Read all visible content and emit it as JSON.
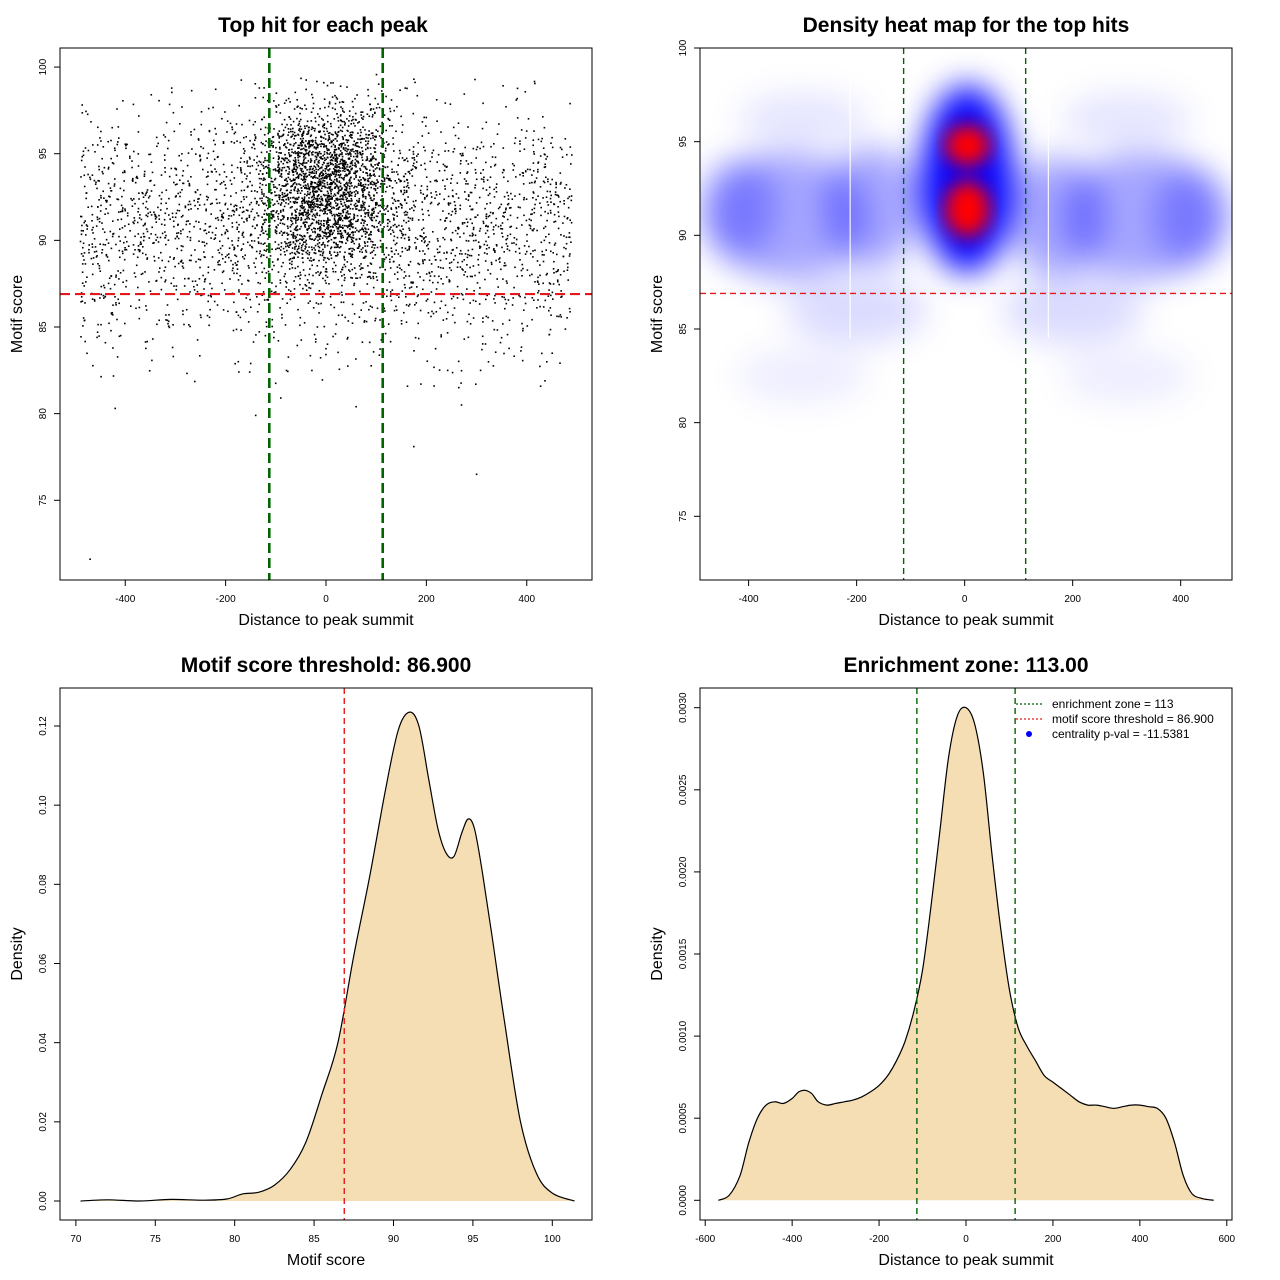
{
  "chart_data": [
    {
      "type": "scatter",
      "title": "Top hit for each peak",
      "xlabel": "Distance to peak summit",
      "ylabel": "Motif score",
      "xlim": [
        -530,
        530
      ],
      "ylim": [
        70.4,
        101.1
      ],
      "xticks": [
        -400,
        -200,
        0,
        200,
        400
      ],
      "yticks": [
        75,
        80,
        85,
        90,
        95,
        100
      ],
      "threshold_y": 86.9,
      "zone_x": [
        -113,
        113
      ],
      "colors": {
        "points": "#000000",
        "threshold": "#e31a1c",
        "zone": "#006400"
      },
      "points": {
        "n_uniform": 2600,
        "uniform_x_range": [
          -490,
          490
        ],
        "uniform_mean": 90.6,
        "uniform_sd": 3.4,
        "n_center": 2200,
        "center_sd_x": 70,
        "center_modes": [
          {
            "y": 91.8,
            "sd": 1.9,
            "weight": 0.55
          },
          {
            "y": 94.8,
            "sd": 1.6,
            "weight": 0.45
          }
        ],
        "outliers": [
          [
            -470,
            71.6
          ],
          [
            300,
            76.5
          ],
          [
            175,
            78.1
          ],
          [
            -140,
            79.9
          ],
          [
            -420,
            80.3
          ],
          [
            60,
            80.4
          ],
          [
            270,
            80.5
          ],
          [
            -90,
            80.9
          ]
        ]
      }
    },
    {
      "type": "heatmap",
      "title": "Density heat map for the top hits",
      "xlabel": "Distance to peak summit",
      "ylabel": "Motif score",
      "xlim": [
        -490,
        495
      ],
      "ylim": [
        71.6,
        100.0
      ],
      "xticks": [
        -400,
        -200,
        0,
        200,
        400
      ],
      "yticks": [
        75,
        80,
        85,
        90,
        95,
        100
      ],
      "threshold_y": 86.9,
      "zone_x": [
        -113,
        113
      ],
      "colors": {
        "low": "#ffffff",
        "mid": "#0000ff",
        "high": "#ff0000",
        "threshold": "#e31a1c",
        "zone": "#006400"
      },
      "density_peaks": [
        {
          "x": 5,
          "y": 91.4
        },
        {
          "x": 5,
          "y": 94.8
        }
      ]
    },
    {
      "type": "area",
      "title": "Motif score threshold: 86.900",
      "xlabel": "Motif score",
      "ylabel": "Density",
      "xlim": [
        69,
        102.5
      ],
      "ylim": [
        -0.0048,
        0.1296
      ],
      "xticks": [
        70,
        75,
        80,
        85,
        90,
        95,
        100
      ],
      "yticks": [
        0.0,
        0.02,
        0.04,
        0.06,
        0.08,
        0.1,
        0.12
      ],
      "ytick_labels": [
        "0.00",
        "0.02",
        "0.04",
        "0.06",
        "0.08",
        "0.10",
        "0.12"
      ],
      "threshold_x": 86.9,
      "colors": {
        "fill": "#f5deb3",
        "line": "#000000",
        "threshold": "#e31a1c"
      },
      "x": [
        70.3,
        72,
        74,
        76,
        78,
        79.5,
        80.5,
        81.5,
        82.5,
        83.5,
        84.5,
        85.5,
        86.5,
        87.5,
        88.5,
        89.5,
        90.3,
        91,
        91.6,
        92.2,
        92.8,
        93.3,
        93.8,
        94.3,
        94.7,
        95.1,
        95.6,
        96.2,
        97,
        98,
        99,
        100,
        101.4
      ],
      "y": [
        0.0,
        0.0003,
        0.0,
        0.0004,
        0.0002,
        0.0005,
        0.0018,
        0.0022,
        0.004,
        0.008,
        0.015,
        0.027,
        0.04,
        0.062,
        0.082,
        0.104,
        0.119,
        0.1235,
        0.12,
        0.107,
        0.094,
        0.088,
        0.087,
        0.093,
        0.0965,
        0.094,
        0.083,
        0.067,
        0.045,
        0.02,
        0.007,
        0.002,
        0.0
      ]
    },
    {
      "type": "area",
      "title": "Enrichment zone: 113.00",
      "xlabel": "Distance to peak summit",
      "ylabel": "Density",
      "xlim": [
        -612,
        612
      ],
      "ylim": [
        -0.00012,
        0.00312
      ],
      "xticks": [
        -600,
        -400,
        -200,
        0,
        200,
        400,
        600
      ],
      "yticks": [
        0.0,
        0.0005,
        0.001,
        0.0015,
        0.002,
        0.0025,
        0.003
      ],
      "ytick_labels": [
        "0.0000",
        "0.0005",
        "0.0010",
        "0.0015",
        "0.0020",
        "0.0025",
        "0.0030"
      ],
      "zone_x": [
        -113,
        113
      ],
      "colors": {
        "fill": "#f5deb3",
        "line": "#000000",
        "zone": "#006400"
      },
      "x": [
        -570,
        -545,
        -520,
        -500,
        -480,
        -460,
        -440,
        -420,
        -400,
        -385,
        -370,
        -355,
        -340,
        -320,
        -300,
        -280,
        -260,
        -240,
        -220,
        -200,
        -180,
        -160,
        -140,
        -120,
        -100,
        -80,
        -60,
        -40,
        -20,
        0,
        20,
        40,
        60,
        80,
        100,
        120,
        140,
        160,
        180,
        200,
        220,
        240,
        260,
        280,
        300,
        320,
        340,
        360,
        380,
        400,
        420,
        440,
        460,
        480,
        500,
        520,
        545,
        570
      ],
      "y": [
        0.0,
        3e-05,
        0.00015,
        0.00035,
        0.0005,
        0.00058,
        0.0006,
        0.00059,
        0.00062,
        0.00066,
        0.00067,
        0.00065,
        0.0006,
        0.00058,
        0.00059,
        0.0006,
        0.00061,
        0.00063,
        0.00066,
        0.0007,
        0.00076,
        0.00085,
        0.00097,
        0.00115,
        0.0014,
        0.0018,
        0.00225,
        0.0027,
        0.00295,
        0.003,
        0.0029,
        0.0026,
        0.0021,
        0.00165,
        0.00128,
        0.00105,
        0.00094,
        0.00085,
        0.00076,
        0.00072,
        0.00068,
        0.00064,
        0.0006,
        0.00058,
        0.00058,
        0.00057,
        0.00056,
        0.00057,
        0.00058,
        0.00058,
        0.00057,
        0.00056,
        0.0005,
        0.00035,
        0.00015,
        4e-05,
        1e-05,
        0.0
      ],
      "legend": {
        "placement": "top-right",
        "entries": [
          {
            "label": "enrichment zone = 113",
            "style": "dotted-line",
            "color": "#006400"
          },
          {
            "label": "motif score threshold = 86.900",
            "style": "dotted-line",
            "color": "#e31a1c"
          },
          {
            "label": "centrality p-val = -11.5381",
            "style": "point",
            "color": "#0000ff"
          }
        ]
      }
    }
  ]
}
